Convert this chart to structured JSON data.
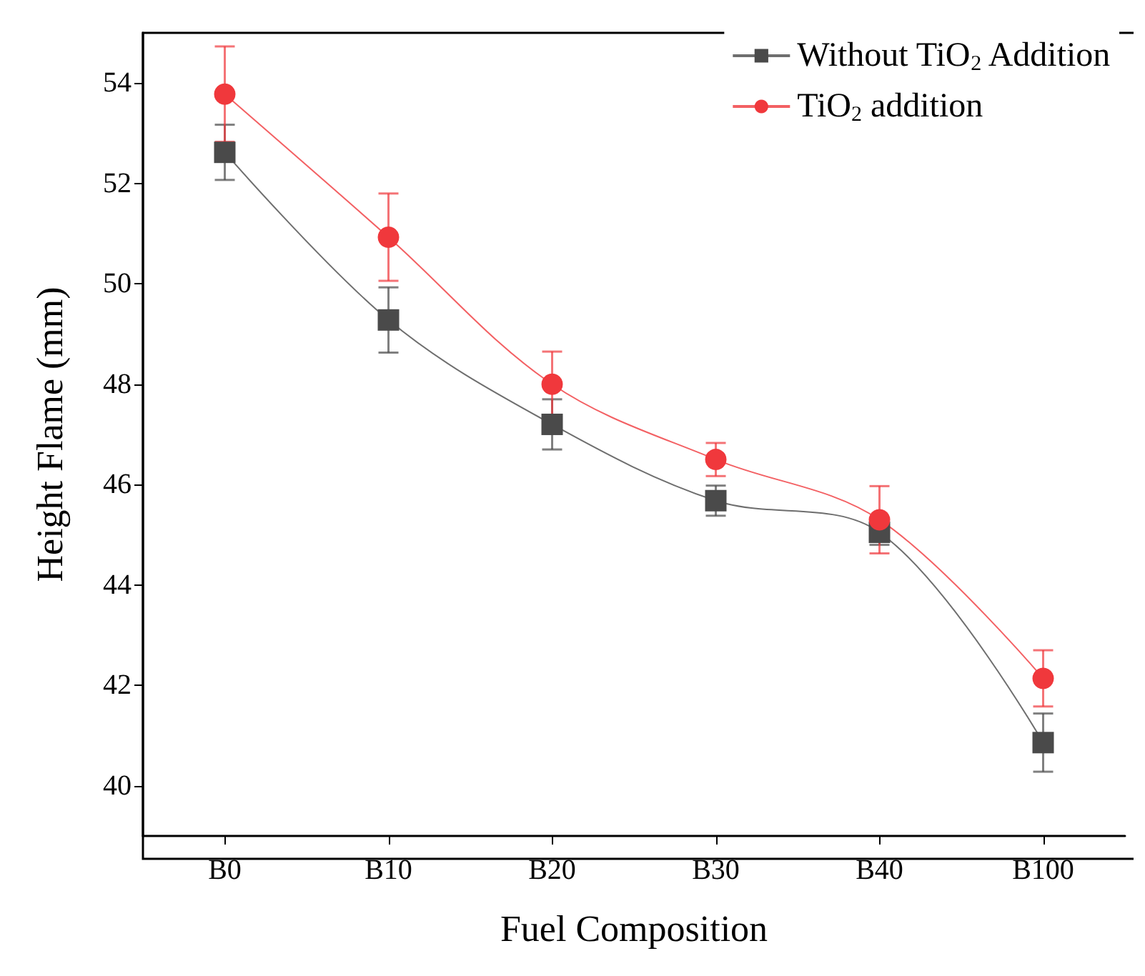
{
  "chart_data": {
    "type": "line",
    "xlabel": "Fuel Composition",
    "ylabel": "Height Flame (mm)",
    "categories": [
      "B0",
      "B10",
      "B20",
      "B30",
      "B40",
      "B100"
    ],
    "series": [
      {
        "name": "Without TiO$_{2}$ Addition",
        "color": "#4a4a4a",
        "marker": "square",
        "values": [
          52.62,
          49.28,
          47.2,
          45.68,
          45.05,
          40.86
        ],
        "errors": [
          0.55,
          0.65,
          0.5,
          0.3,
          0.25,
          0.58
        ]
      },
      {
        "name": "TiO$_{2}$ addition",
        "color": "#f0383c",
        "marker": "circle",
        "values": [
          53.78,
          50.93,
          48.0,
          46.5,
          45.3,
          42.14
        ],
        "errors": [
          0.95,
          0.87,
          0.65,
          0.33,
          0.67,
          0.56
        ]
      }
    ],
    "ylim": [
      39,
      55
    ],
    "yticks": [
      40,
      42,
      44,
      46,
      48,
      50,
      52,
      54
    ],
    "grid": false,
    "legend": "top right",
    "line_style": "solid"
  }
}
